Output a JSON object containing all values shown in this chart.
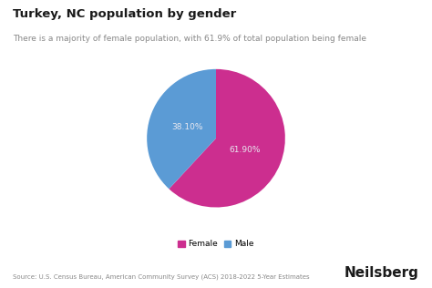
{
  "title": "Turkey, NC population by gender",
  "subtitle": "There is a majority of female population, with 61.9% of total population being female",
  "labels": [
    "Female",
    "Male"
  ],
  "values": [
    61.9,
    38.1
  ],
  "colors": [
    "#cc2e8f",
    "#5b9bd5"
  ],
  "text_labels": [
    "61.90%",
    "38.10%"
  ],
  "text_color": "#e8e8f0",
  "background_color": "#ffffff",
  "source_text": "Source: U.S. Census Bureau, American Community Survey (ACS) 2018-2022 5-Year Estimates",
  "brand_text": "Neilsberg",
  "title_fontsize": 9.5,
  "subtitle_fontsize": 6.5,
  "legend_fontsize": 6.5,
  "source_fontsize": 5.0,
  "brand_fontsize": 11,
  "pie_label_fontsize": 6.5,
  "startangle": 90
}
